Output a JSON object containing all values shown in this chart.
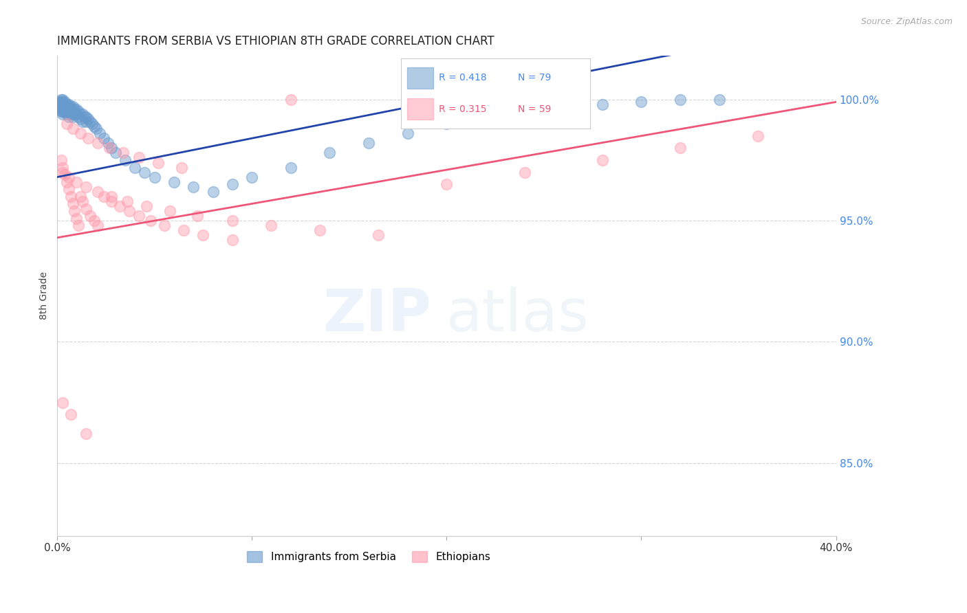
{
  "title": "IMMIGRANTS FROM SERBIA VS ETHIOPIAN 8TH GRADE CORRELATION CHART",
  "source_text": "Source: ZipAtlas.com",
  "ylabel": "8th Grade",
  "yticks": [
    0.85,
    0.9,
    0.95,
    1.0
  ],
  "ytick_labels": [
    "85.0%",
    "90.0%",
    "95.0%",
    "100.0%"
  ],
  "xlim": [
    0.0,
    0.4
  ],
  "ylim": [
    0.82,
    1.018
  ],
  "serbia_R": 0.418,
  "serbia_N": 79,
  "ethiopia_R": 0.315,
  "ethiopia_N": 59,
  "serbia_color": "#6699CC",
  "ethiopia_color": "#FF99AA",
  "serbia_line_color": "#2244AA",
  "ethiopia_line_color": "#EE5577",
  "legend_serbia": "Immigrants from Serbia",
  "legend_ethiopia": "Ethiopians",
  "background_color": "#FFFFFF",
  "serbia_x": [
    0.001,
    0.001,
    0.001,
    0.002,
    0.002,
    0.002,
    0.002,
    0.002,
    0.002,
    0.003,
    0.003,
    0.003,
    0.003,
    0.003,
    0.003,
    0.003,
    0.004,
    0.004,
    0.004,
    0.004,
    0.004,
    0.005,
    0.005,
    0.005,
    0.005,
    0.006,
    0.006,
    0.006,
    0.006,
    0.007,
    0.007,
    0.007,
    0.008,
    0.008,
    0.008,
    0.009,
    0.009,
    0.01,
    0.01,
    0.011,
    0.011,
    0.012,
    0.012,
    0.013,
    0.013,
    0.014,
    0.015,
    0.015,
    0.016,
    0.017,
    0.018,
    0.019,
    0.02,
    0.022,
    0.024,
    0.026,
    0.028,
    0.03,
    0.035,
    0.04,
    0.045,
    0.05,
    0.06,
    0.07,
    0.08,
    0.09,
    0.1,
    0.12,
    0.14,
    0.16,
    0.18,
    0.2,
    0.22,
    0.24,
    0.26,
    0.28,
    0.3,
    0.32,
    0.34
  ],
  "serbia_y": [
    0.999,
    0.998,
    0.997,
    1.0,
    0.999,
    0.998,
    0.997,
    0.996,
    0.995,
    1.0,
    0.999,
    0.998,
    0.997,
    0.996,
    0.995,
    0.994,
    0.999,
    0.998,
    0.997,
    0.996,
    0.995,
    0.998,
    0.997,
    0.996,
    0.994,
    0.998,
    0.997,
    0.995,
    0.993,
    0.997,
    0.996,
    0.994,
    0.997,
    0.995,
    0.993,
    0.996,
    0.994,
    0.996,
    0.994,
    0.995,
    0.993,
    0.994,
    0.992,
    0.994,
    0.991,
    0.993,
    0.993,
    0.991,
    0.992,
    0.991,
    0.99,
    0.989,
    0.988,
    0.986,
    0.984,
    0.982,
    0.98,
    0.978,
    0.975,
    0.972,
    0.97,
    0.968,
    0.966,
    0.964,
    0.962,
    0.965,
    0.968,
    0.972,
    0.978,
    0.982,
    0.986,
    0.99,
    0.993,
    0.995,
    0.997,
    0.998,
    0.999,
    1.0,
    1.0
  ],
  "ethiopia_x": [
    0.002,
    0.003,
    0.004,
    0.005,
    0.006,
    0.007,
    0.008,
    0.009,
    0.01,
    0.011,
    0.012,
    0.013,
    0.015,
    0.017,
    0.019,
    0.021,
    0.024,
    0.028,
    0.032,
    0.037,
    0.042,
    0.048,
    0.055,
    0.065,
    0.075,
    0.09,
    0.005,
    0.008,
    0.012,
    0.016,
    0.021,
    0.027,
    0.034,
    0.042,
    0.052,
    0.064,
    0.003,
    0.006,
    0.01,
    0.015,
    0.021,
    0.028,
    0.036,
    0.046,
    0.058,
    0.072,
    0.09,
    0.11,
    0.135,
    0.165,
    0.2,
    0.24,
    0.28,
    0.32,
    0.36,
    0.003,
    0.007,
    0.015,
    0.12
  ],
  "ethiopia_y": [
    0.975,
    0.972,
    0.969,
    0.966,
    0.963,
    0.96,
    0.957,
    0.954,
    0.951,
    0.948,
    0.96,
    0.958,
    0.955,
    0.952,
    0.95,
    0.948,
    0.96,
    0.958,
    0.956,
    0.954,
    0.952,
    0.95,
    0.948,
    0.946,
    0.944,
    0.942,
    0.99,
    0.988,
    0.986,
    0.984,
    0.982,
    0.98,
    0.978,
    0.976,
    0.974,
    0.972,
    0.97,
    0.968,
    0.966,
    0.964,
    0.962,
    0.96,
    0.958,
    0.956,
    0.954,
    0.952,
    0.95,
    0.948,
    0.946,
    0.944,
    0.965,
    0.97,
    0.975,
    0.98,
    0.985,
    0.875,
    0.87,
    0.862,
    1.0
  ]
}
